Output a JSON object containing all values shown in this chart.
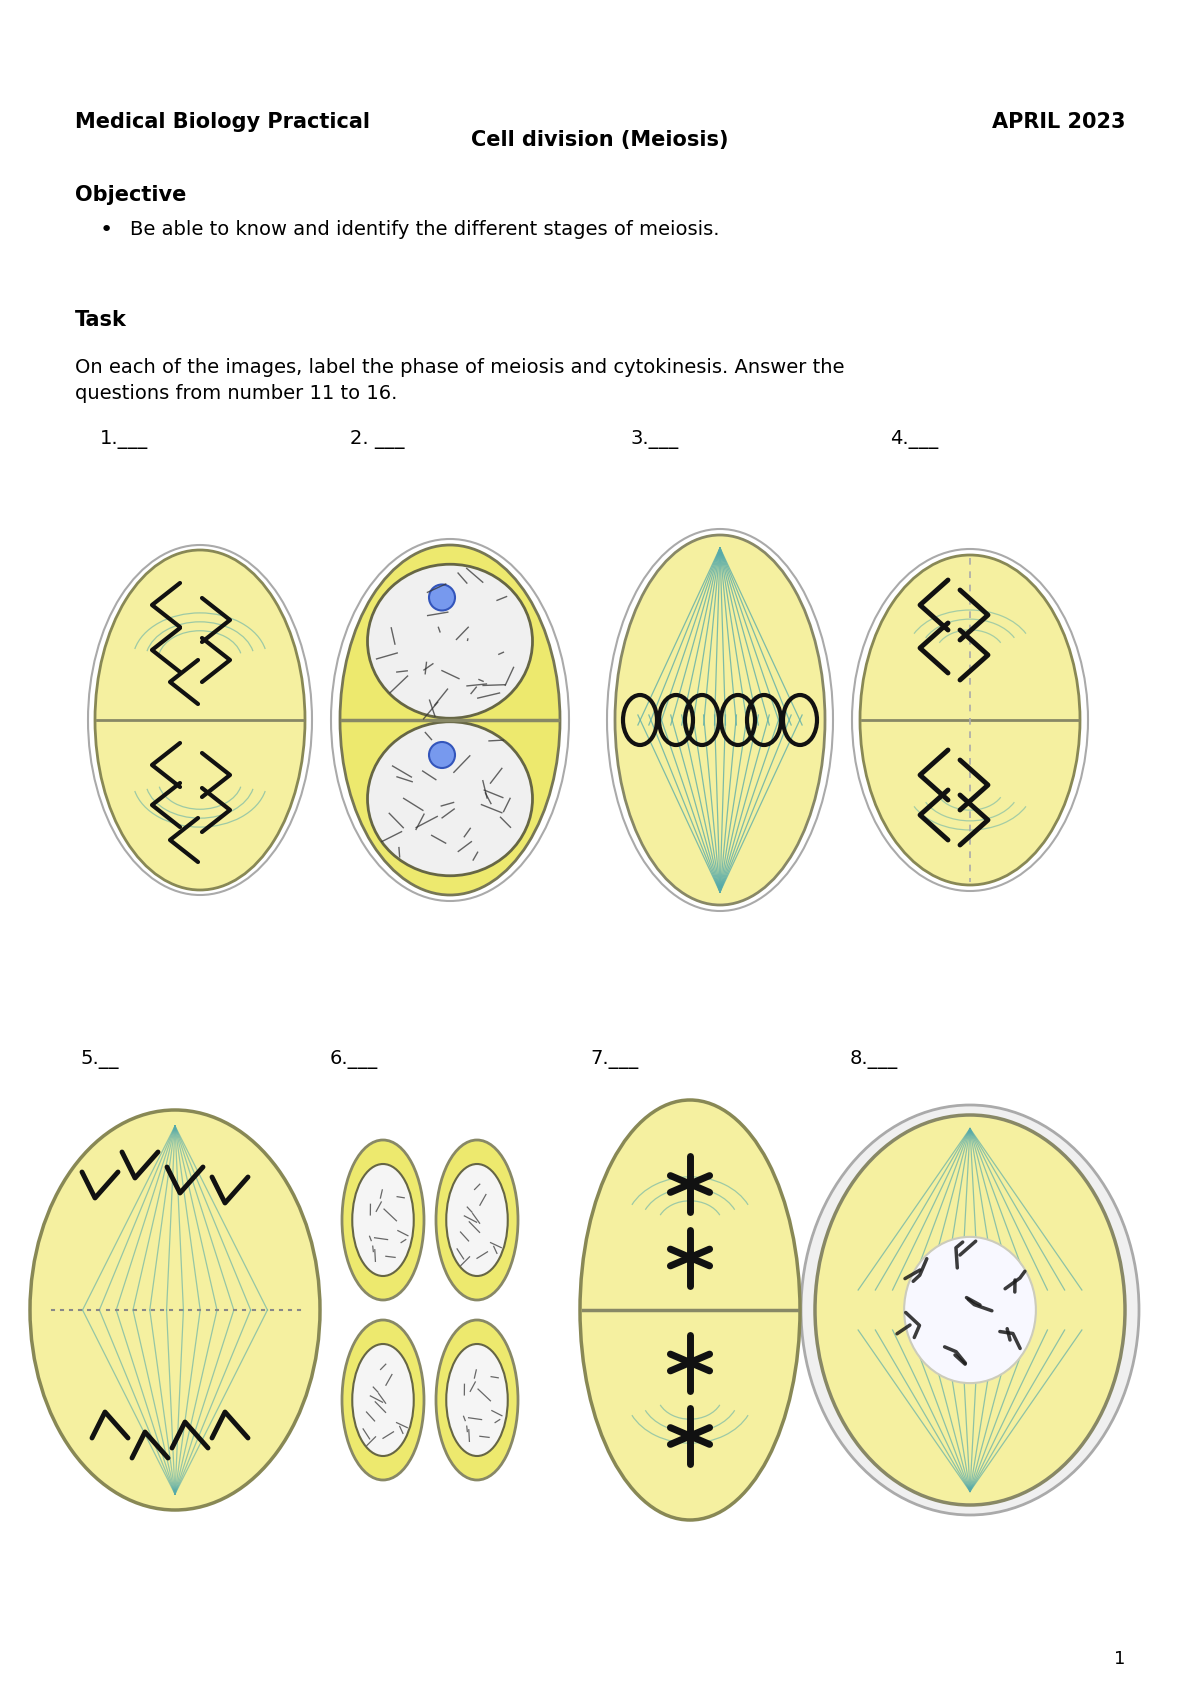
{
  "title_left": "Medical Biology Practical",
  "title_right": "APRIL 2023",
  "title_center": "Cell division (Meiosis)",
  "objective_header": "Objective",
  "objective_bullet": "Be able to know and identify the different stages of meiosis.",
  "task_header": "Task",
  "task_body": "On each of the images, label the phase of meiosis and cytokinesis. Answer the\nquestions from number 11 to 16.",
  "labels_row1": [
    "1.___",
    "2. ___",
    "3.___",
    "4.___"
  ],
  "labels_row2": [
    "5.__",
    "6.___",
    "7.___",
    "8.___"
  ],
  "cell_yellow": "#F5F0A0",
  "cell_yellow2": "#EDE96E",
  "cell_outline": "#888855",
  "nucleus_color": "#f0f0f0",
  "nucleus_outline": "#555555",
  "chrom_color": "#111111",
  "spindle_color": "#55aaaa",
  "bg_color": "#ffffff",
  "page_number": "1"
}
